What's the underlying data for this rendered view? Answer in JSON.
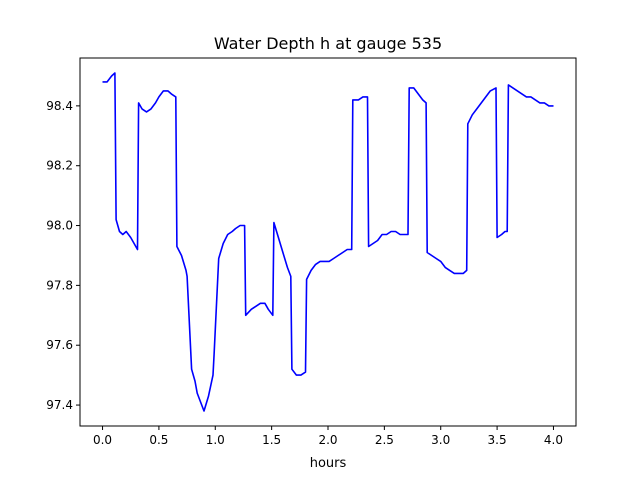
{
  "chart_data": {
    "type": "line",
    "title": "Water Depth h at gauge 535",
    "xlabel": "hours",
    "ylabel": "",
    "xlim": [
      -0.2,
      4.2
    ],
    "ylim": [
      97.33,
      98.56
    ],
    "xticks": [
      0.0,
      0.5,
      1.0,
      1.5,
      2.0,
      2.5,
      3.0,
      3.5,
      4.0
    ],
    "xtick_labels": [
      "0.0",
      "0.5",
      "1.0",
      "1.5",
      "2.0",
      "2.5",
      "3.0",
      "3.5",
      "4.0"
    ],
    "yticks": [
      97.4,
      97.6,
      97.8,
      98.0,
      98.2,
      98.4
    ],
    "ytick_labels": [
      "97.4",
      "97.6",
      "97.8",
      "98.0",
      "98.2",
      "98.4"
    ],
    "grid": false,
    "legend": "none",
    "series": [
      {
        "color": "#0000ff",
        "x": [
          0.0,
          0.04,
          0.08,
          0.11,
          0.12,
          0.15,
          0.18,
          0.21,
          0.25,
          0.28,
          0.31,
          0.32,
          0.35,
          0.39,
          0.43,
          0.47,
          0.5,
          0.54,
          0.58,
          0.61,
          0.65,
          0.66,
          0.7,
          0.74,
          0.75,
          0.79,
          0.82,
          0.84,
          0.87,
          0.9,
          0.94,
          0.98,
          0.99,
          1.03,
          1.07,
          1.11,
          1.15,
          1.18,
          1.22,
          1.26,
          1.27,
          1.32,
          1.36,
          1.4,
          1.44,
          1.47,
          1.51,
          1.52,
          1.56,
          1.6,
          1.64,
          1.67,
          1.68,
          1.72,
          1.76,
          1.8,
          1.81,
          1.85,
          1.89,
          1.93,
          1.97,
          2.01,
          2.05,
          2.09,
          2.13,
          2.17,
          2.21,
          2.22,
          2.27,
          2.31,
          2.35,
          2.36,
          2.4,
          2.44,
          2.48,
          2.52,
          2.56,
          2.6,
          2.64,
          2.68,
          2.71,
          2.72,
          2.76,
          2.8,
          2.84,
          2.87,
          2.88,
          2.92,
          2.96,
          3.0,
          3.04,
          3.08,
          3.12,
          3.16,
          3.2,
          3.23,
          3.24,
          3.28,
          3.32,
          3.36,
          3.4,
          3.44,
          3.49,
          3.5,
          3.54,
          3.57,
          3.59,
          3.6,
          3.64,
          3.68,
          3.72,
          3.76,
          3.8,
          3.84,
          3.88,
          3.92,
          3.96,
          4.0
        ],
        "y": [
          98.48,
          98.48,
          98.5,
          98.51,
          98.02,
          97.98,
          97.97,
          97.98,
          97.96,
          97.94,
          97.92,
          98.41,
          98.39,
          98.38,
          98.39,
          98.41,
          98.43,
          98.45,
          98.45,
          98.44,
          98.43,
          97.93,
          97.9,
          97.85,
          97.83,
          97.52,
          97.48,
          97.44,
          97.41,
          97.38,
          97.43,
          97.5,
          97.57,
          97.89,
          97.94,
          97.97,
          97.98,
          97.99,
          98.0,
          98.0,
          97.7,
          97.72,
          97.73,
          97.74,
          97.74,
          97.72,
          97.7,
          98.01,
          97.96,
          97.91,
          97.86,
          97.83,
          97.52,
          97.5,
          97.5,
          97.51,
          97.82,
          97.85,
          97.87,
          97.88,
          97.88,
          97.88,
          97.89,
          97.9,
          97.91,
          97.92,
          97.92,
          98.42,
          98.42,
          98.43,
          98.43,
          97.93,
          97.94,
          97.95,
          97.97,
          97.97,
          97.98,
          97.98,
          97.97,
          97.97,
          97.97,
          98.46,
          98.46,
          98.44,
          98.42,
          98.41,
          97.91,
          97.9,
          97.89,
          97.88,
          97.86,
          97.85,
          97.84,
          97.84,
          97.84,
          97.85,
          98.34,
          98.37,
          98.39,
          98.41,
          98.43,
          98.45,
          98.46,
          97.96,
          97.97,
          97.98,
          97.98,
          98.47,
          98.46,
          98.45,
          98.44,
          98.43,
          98.43,
          98.42,
          98.41,
          98.41,
          98.4,
          98.4
        ]
      }
    ]
  }
}
